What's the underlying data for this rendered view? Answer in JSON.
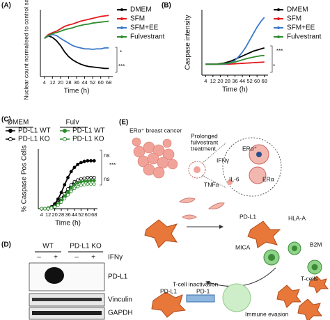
{
  "chart_data": [
    {
      "type": "line",
      "panel": "(A)",
      "xlabel": "Time (h)",
      "ylabel": "Nuclear count normalised to control sample",
      "x": [
        4,
        8,
        12,
        16,
        20,
        24,
        28,
        32,
        36,
        40,
        44,
        48,
        52,
        56,
        60,
        64,
        68
      ],
      "xlim": [
        0,
        72
      ],
      "xticks": [
        4,
        12,
        20,
        28,
        36,
        44,
        52,
        60,
        68
      ],
      "ylim": [
        0.2,
        1.6
      ],
      "series": [
        {
          "name": "DMEM",
          "color": "#000000",
          "values": [
            1.0,
            1.05,
            1.02,
            0.95,
            0.85,
            0.72,
            0.62,
            0.55,
            0.5,
            0.46,
            0.43,
            0.41,
            0.4,
            0.39,
            0.38,
            0.37,
            0.37
          ]
        },
        {
          "name": "SFM",
          "color": "#e41a1c",
          "values": [
            1.0,
            1.08,
            1.12,
            1.15,
            1.2,
            1.25,
            1.28,
            1.3,
            1.33,
            1.36,
            1.38,
            1.4,
            1.42,
            1.44,
            1.46,
            1.47,
            1.48
          ]
        },
        {
          "name": "SFM+EE",
          "color": "#3a78c9",
          "values": [
            1.0,
            1.05,
            1.08,
            1.06,
            1.0,
            0.95,
            0.9,
            0.85,
            0.82,
            0.8,
            0.78,
            0.78,
            0.77,
            0.78,
            0.78,
            0.8,
            0.8
          ]
        },
        {
          "name": "Fulvestrant",
          "color": "#2e8b2e",
          "values": [
            1.0,
            1.06,
            1.1,
            1.12,
            1.15,
            1.18,
            1.2,
            1.22,
            1.25,
            1.27,
            1.29,
            1.3,
            1.32,
            1.33,
            1.34,
            1.35,
            1.36
          ]
        }
      ],
      "annotations": [
        "*",
        "***"
      ]
    },
    {
      "type": "line",
      "panel": "(B)",
      "xlabel": "Time (h)",
      "ylabel": "Caspase intensity",
      "x": [
        4,
        8,
        12,
        16,
        20,
        24,
        28,
        32,
        36,
        40,
        44,
        48,
        52,
        56,
        60,
        64,
        68
      ],
      "xlim": [
        0,
        72
      ],
      "xticks": [
        4,
        12,
        20,
        28,
        36,
        44,
        52,
        60,
        68
      ],
      "ylim": [
        0,
        6
      ],
      "series": [
        {
          "name": "DMEM",
          "color": "#000000",
          "values": [
            1.0,
            1.0,
            1.0,
            1.0,
            1.05,
            1.1,
            1.2,
            1.3,
            1.45,
            1.6,
            1.75,
            1.9,
            2.05,
            2.2,
            2.3,
            2.4,
            2.5
          ]
        },
        {
          "name": "SFM",
          "color": "#e41a1c",
          "values": [
            1.0,
            1.0,
            1.0,
            1.0,
            1.0,
            1.0,
            1.0,
            1.02,
            1.04,
            1.06,
            1.08,
            1.1,
            1.12,
            1.14,
            1.16,
            1.18,
            1.2
          ]
        },
        {
          "name": "SFM+EE",
          "color": "#3a78c9",
          "values": [
            1.0,
            1.0,
            1.0,
            1.0,
            1.0,
            1.02,
            1.05,
            1.15,
            1.35,
            1.7,
            2.1,
            2.6,
            3.2,
            3.8,
            4.4,
            4.9,
            5.3
          ]
        },
        {
          "name": "Fulvestrant",
          "color": "#2e8b2e",
          "values": [
            1.0,
            1.0,
            1.0,
            1.0,
            1.02,
            1.05,
            1.1,
            1.15,
            1.2,
            1.3,
            1.4,
            1.5,
            1.58,
            1.65,
            1.72,
            1.78,
            1.8
          ]
        }
      ],
      "annotations": [
        "***",
        "*"
      ]
    },
    {
      "type": "line",
      "panel": "(C)",
      "xlabel": "Time (h)",
      "ylabel": "% Caspase Pos Cells",
      "x": [
        4,
        8,
        12,
        16,
        20,
        24,
        28,
        32,
        36,
        40,
        44,
        48,
        52,
        56,
        60,
        64,
        68
      ],
      "xlim": [
        0,
        72
      ],
      "xticks": [
        4,
        12,
        20,
        28,
        36,
        44,
        52,
        60,
        68
      ],
      "ylim": [
        0,
        100
      ],
      "legend_groups": [
        "DMEM",
        "Fulv"
      ],
      "series": [
        {
          "name": "PD-L1 WT",
          "color": "#000000",
          "marker": "filled",
          "values": [
            0,
            0,
            1,
            3,
            8,
            16,
            27,
            40,
            52,
            62,
            69,
            74,
            77,
            79,
            80,
            80,
            80
          ]
        },
        {
          "name": "PD-L1 KO",
          "color": "#000000",
          "marker": "open",
          "values": [
            0,
            0,
            1,
            2,
            5,
            10,
            17,
            25,
            33,
            40,
            45,
            48,
            50,
            51,
            52,
            52,
            52
          ]
        },
        {
          "name": "PD-L1 WT",
          "color": "#2e8b2e",
          "marker": "filled",
          "values": [
            0,
            0,
            1,
            2,
            4,
            8,
            14,
            21,
            28,
            35,
            40,
            43,
            45,
            46,
            46,
            47,
            47
          ]
        },
        {
          "name": "PD-L1 KO",
          "color": "#2e8b2e",
          "marker": "open",
          "values": [
            0,
            0,
            0,
            1,
            3,
            6,
            11,
            17,
            23,
            29,
            34,
            37,
            39,
            40,
            41,
            41,
            41
          ]
        }
      ],
      "annotations": [
        "ns",
        "***",
        "ns"
      ]
    }
  ],
  "blot": {
    "panel": "(D)",
    "groups": [
      "WT",
      "PD-L1 KO"
    ],
    "treatment_signs": [
      "–",
      "+",
      "–",
      "+"
    ],
    "treatment": "IFNγ",
    "rows": [
      "PD-L1",
      "Vinculin",
      "GAPDH"
    ]
  },
  "diagram": {
    "panel": "(E)",
    "labels": [
      "ERα⁺ breast cancer",
      "IFNγ",
      "TNFα",
      "IL-6",
      "ERα⁺",
      "ERα",
      "PD-L1",
      "HLA-A",
      "B2M",
      "MICA",
      "T-cells",
      "T-cell inactivation",
      "PD-L1",
      "PD-1",
      "Immune evasion"
    ],
    "treatment_lines": [
      "Prolonged",
      "fulvestrant",
      "treatment"
    ]
  }
}
